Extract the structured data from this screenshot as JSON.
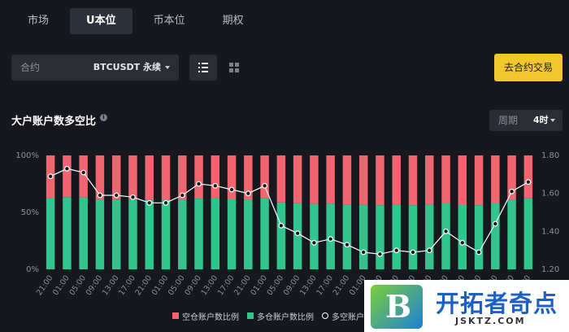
{
  "tabs": [
    "市场",
    "U本位",
    "币本位",
    "期权"
  ],
  "filter": {
    "contract_label": "合约",
    "contract_value": "BTCUSDT 永续",
    "trade_button": "去合约交易"
  },
  "icons": {
    "list": "list-view-icon",
    "grid": "grid-view-icon",
    "info": "info-icon",
    "caret": "chevron-down-icon"
  },
  "chart_panel": {
    "title": "大户账户数多空比",
    "period_label": "周期",
    "period_value": "4时"
  },
  "colors": {
    "short": "#f0656f",
    "long": "#31c48d",
    "ratio_line": "#ffffff",
    "accent": "#f0c82b"
  },
  "chart_data": {
    "type": "bar",
    "title": "大户账户数多空比",
    "categories": [
      "21:00",
      "01:00",
      "05:00",
      "09:00",
      "13:00",
      "17:00",
      "21:00",
      "01:00",
      "05:00",
      "09:00",
      "13:00",
      "17:00",
      "21:00",
      "01:00",
      "05:00",
      "09:00",
      "13:00",
      "17:00",
      "21:00",
      "01:00",
      "05:00",
      "09:00",
      "13:00",
      "17:00",
      "21:00",
      "01:00",
      "05:00",
      "09:00",
      "13:00",
      "17:00"
    ],
    "series": [
      {
        "name": "多仓账户数比例",
        "axis": "left",
        "values": [
          62.8,
          63.4,
          63.1,
          61.4,
          61.3,
          61.2,
          60.8,
          60.7,
          61.1,
          62.0,
          62.2,
          61.8,
          61.4,
          62.2,
          58.7,
          58.1,
          57.4,
          57.7,
          57.0,
          56.5,
          56.2,
          56.5,
          56.2,
          56.5,
          58.2,
          57.1,
          56.2,
          58.2,
          61.4,
          62.3
        ]
      },
      {
        "name": "空仓账户数比例",
        "axis": "left",
        "values": [
          37.2,
          36.6,
          36.9,
          38.6,
          38.7,
          38.8,
          39.2,
          39.3,
          38.9,
          38.0,
          37.8,
          38.2,
          38.6,
          37.8,
          41.3,
          41.9,
          42.6,
          42.3,
          43.0,
          43.5,
          43.8,
          43.5,
          43.8,
          43.5,
          41.8,
          42.9,
          43.8,
          41.8,
          38.6,
          37.7
        ]
      },
      {
        "name": "多空账户数比",
        "axis": "right",
        "type": "line",
        "values": [
          1.69,
          1.73,
          1.71,
          1.59,
          1.59,
          1.58,
          1.55,
          1.55,
          1.59,
          1.65,
          1.64,
          1.62,
          1.6,
          1.64,
          1.43,
          1.39,
          1.34,
          1.36,
          1.33,
          1.29,
          1.28,
          1.3,
          1.29,
          1.3,
          1.4,
          1.34,
          1.29,
          1.44,
          1.61,
          1.66
        ]
      }
    ],
    "y_left": {
      "ticks": [
        "0%",
        "50%",
        "100%"
      ],
      "range": [
        0,
        100
      ]
    },
    "y_right": {
      "ticks": [
        "1.20",
        "1.40",
        "1.60",
        "1.80"
      ],
      "range": [
        1.2,
        1.8
      ]
    },
    "legend_position": "bottom"
  },
  "watermark": {
    "logo_letter": "B",
    "title": "开拓者奇点",
    "url": "JSKTZ.COM"
  }
}
